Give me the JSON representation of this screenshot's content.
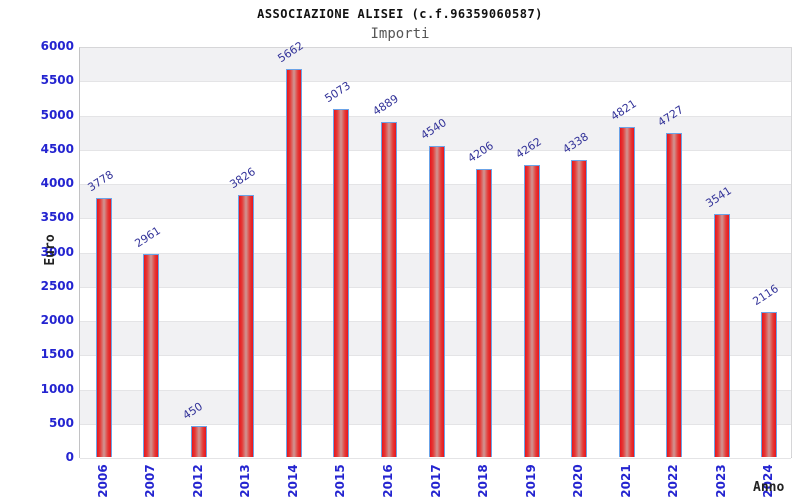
{
  "header": {
    "title": "ASSOCIAZIONE ALISEI (c.f.96359060587)",
    "subtitle": "Importi"
  },
  "chart_data": {
    "type": "bar",
    "title": "ASSOCIAZIONE ALISEI (c.f.96359060587)",
    "subtitle": "Importi",
    "xlabel": "Anno",
    "ylabel": "Euro",
    "categories": [
      "2006",
      "2007",
      "2012",
      "2013",
      "2014",
      "2015",
      "2016",
      "2017",
      "2018",
      "2019",
      "2020",
      "2021",
      "2022",
      "2023",
      "2024"
    ],
    "values": [
      3778,
      2961,
      450,
      3826,
      5662,
      5073,
      4889,
      4540,
      4206,
      4262,
      4338,
      4821,
      4727,
      3541,
      2116
    ],
    "ylim": [
      0,
      6000
    ],
    "ytick_step": 500,
    "yticks": [
      0,
      500,
      1000,
      1500,
      2000,
      2500,
      3000,
      3500,
      4000,
      4500,
      5000,
      5500,
      6000
    ],
    "grid": true,
    "legend": false,
    "band_fill": "alternating gray/white horizontal bands",
    "colors": {
      "bar_fill_edge": "#e8151d",
      "bar_fill_center": "#d09693",
      "bar_border": "#6ba3e7",
      "value_label": "#333399",
      "tick_label": "#2424d0",
      "band_gray": "#f1f1f3",
      "gridline": "#e4e4e6",
      "title": "#111111",
      "subtitle": "#555555"
    }
  }
}
